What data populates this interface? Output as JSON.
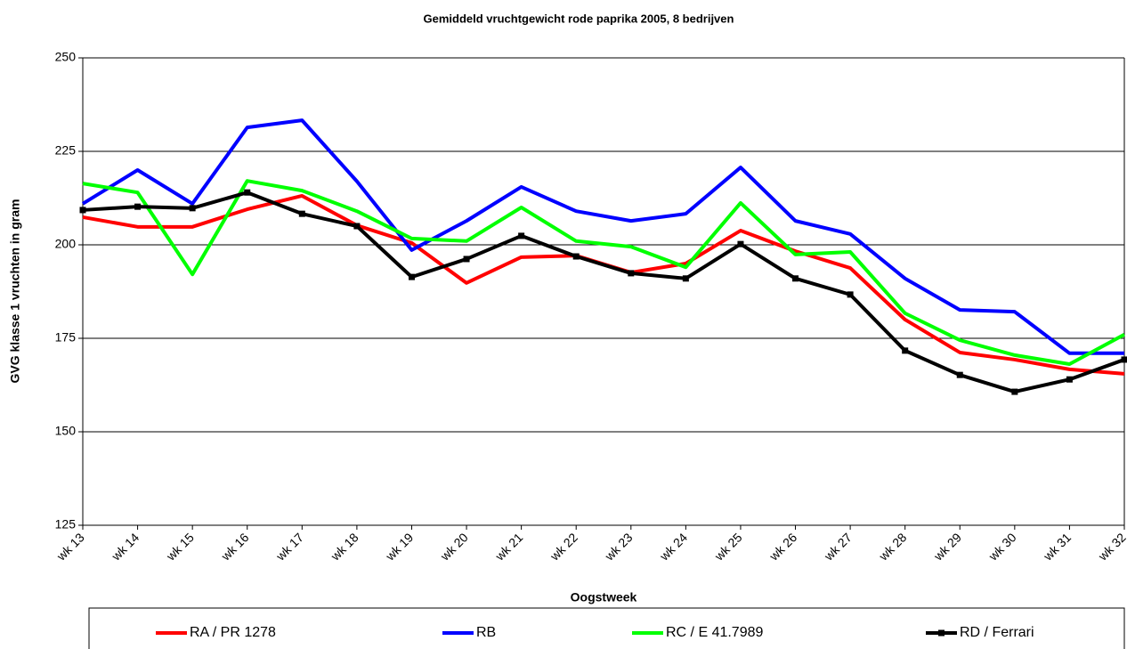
{
  "chart_data": {
    "type": "line",
    "title": "Gemiddeld vruchtgewicht rode paprika 2005, 8 bedrijven",
    "x_label": "Oogstweek",
    "y_label": "GVG klasse 1 vruchten in gram",
    "categories": [
      "wk 13",
      "wk 14",
      "wk 15",
      "wk 16",
      "wk 17",
      "wk 18",
      "wk 19",
      "wk 20",
      "wk 21",
      "wk 22",
      "wk 23",
      "wk 24",
      "wk 25",
      "wk 26",
      "wk 27",
      "wk 28",
      "wk 29",
      "wk 30",
      "wk 31",
      "wk 32"
    ],
    "series": [
      {
        "name": "RA / PR 1278",
        "color": "#ff0000",
        "values": [
          207.4,
          204.8,
          204.8,
          209.5,
          213.1,
          205.2,
          200.5,
          189.8,
          196.7,
          197.1,
          192.6,
          195,
          203.8,
          198.3,
          193.8,
          180,
          171.2,
          169.3,
          166.7,
          165.5
        ]
      },
      {
        "name": "RB",
        "color": "#0000ff",
        "values": [
          211,
          220,
          211,
          231.4,
          233.3,
          217,
          198.6,
          206.4,
          215.5,
          209,
          206.4,
          208.3,
          220.7,
          206.4,
          202.9,
          191,
          182.6,
          182.1,
          171,
          171
        ]
      },
      {
        "name": "RC / E 41.7989",
        "color": "#00ff00",
        "values": [
          216.4,
          214,
          192.1,
          217.1,
          214.5,
          209,
          201.7,
          201,
          210,
          201,
          199.5,
          194,
          211.2,
          197.4,
          198.1,
          181.7,
          174.5,
          170.5,
          168.1,
          176
        ]
      },
      {
        "name": "RD / Ferrari",
        "color": "#000000",
        "markers": true,
        "values": [
          209.3,
          210.2,
          209.8,
          214,
          208.3,
          205,
          191.4,
          196.2,
          202.4,
          196.9,
          192.4,
          191,
          200.2,
          191,
          186.7,
          171.7,
          165.2,
          160.7,
          164,
          169.3
        ]
      }
    ],
    "ylim": [
      125,
      250
    ],
    "yticks": [
      125,
      150,
      175,
      200,
      225,
      250
    ],
    "grid": true,
    "legend": "bottom"
  }
}
